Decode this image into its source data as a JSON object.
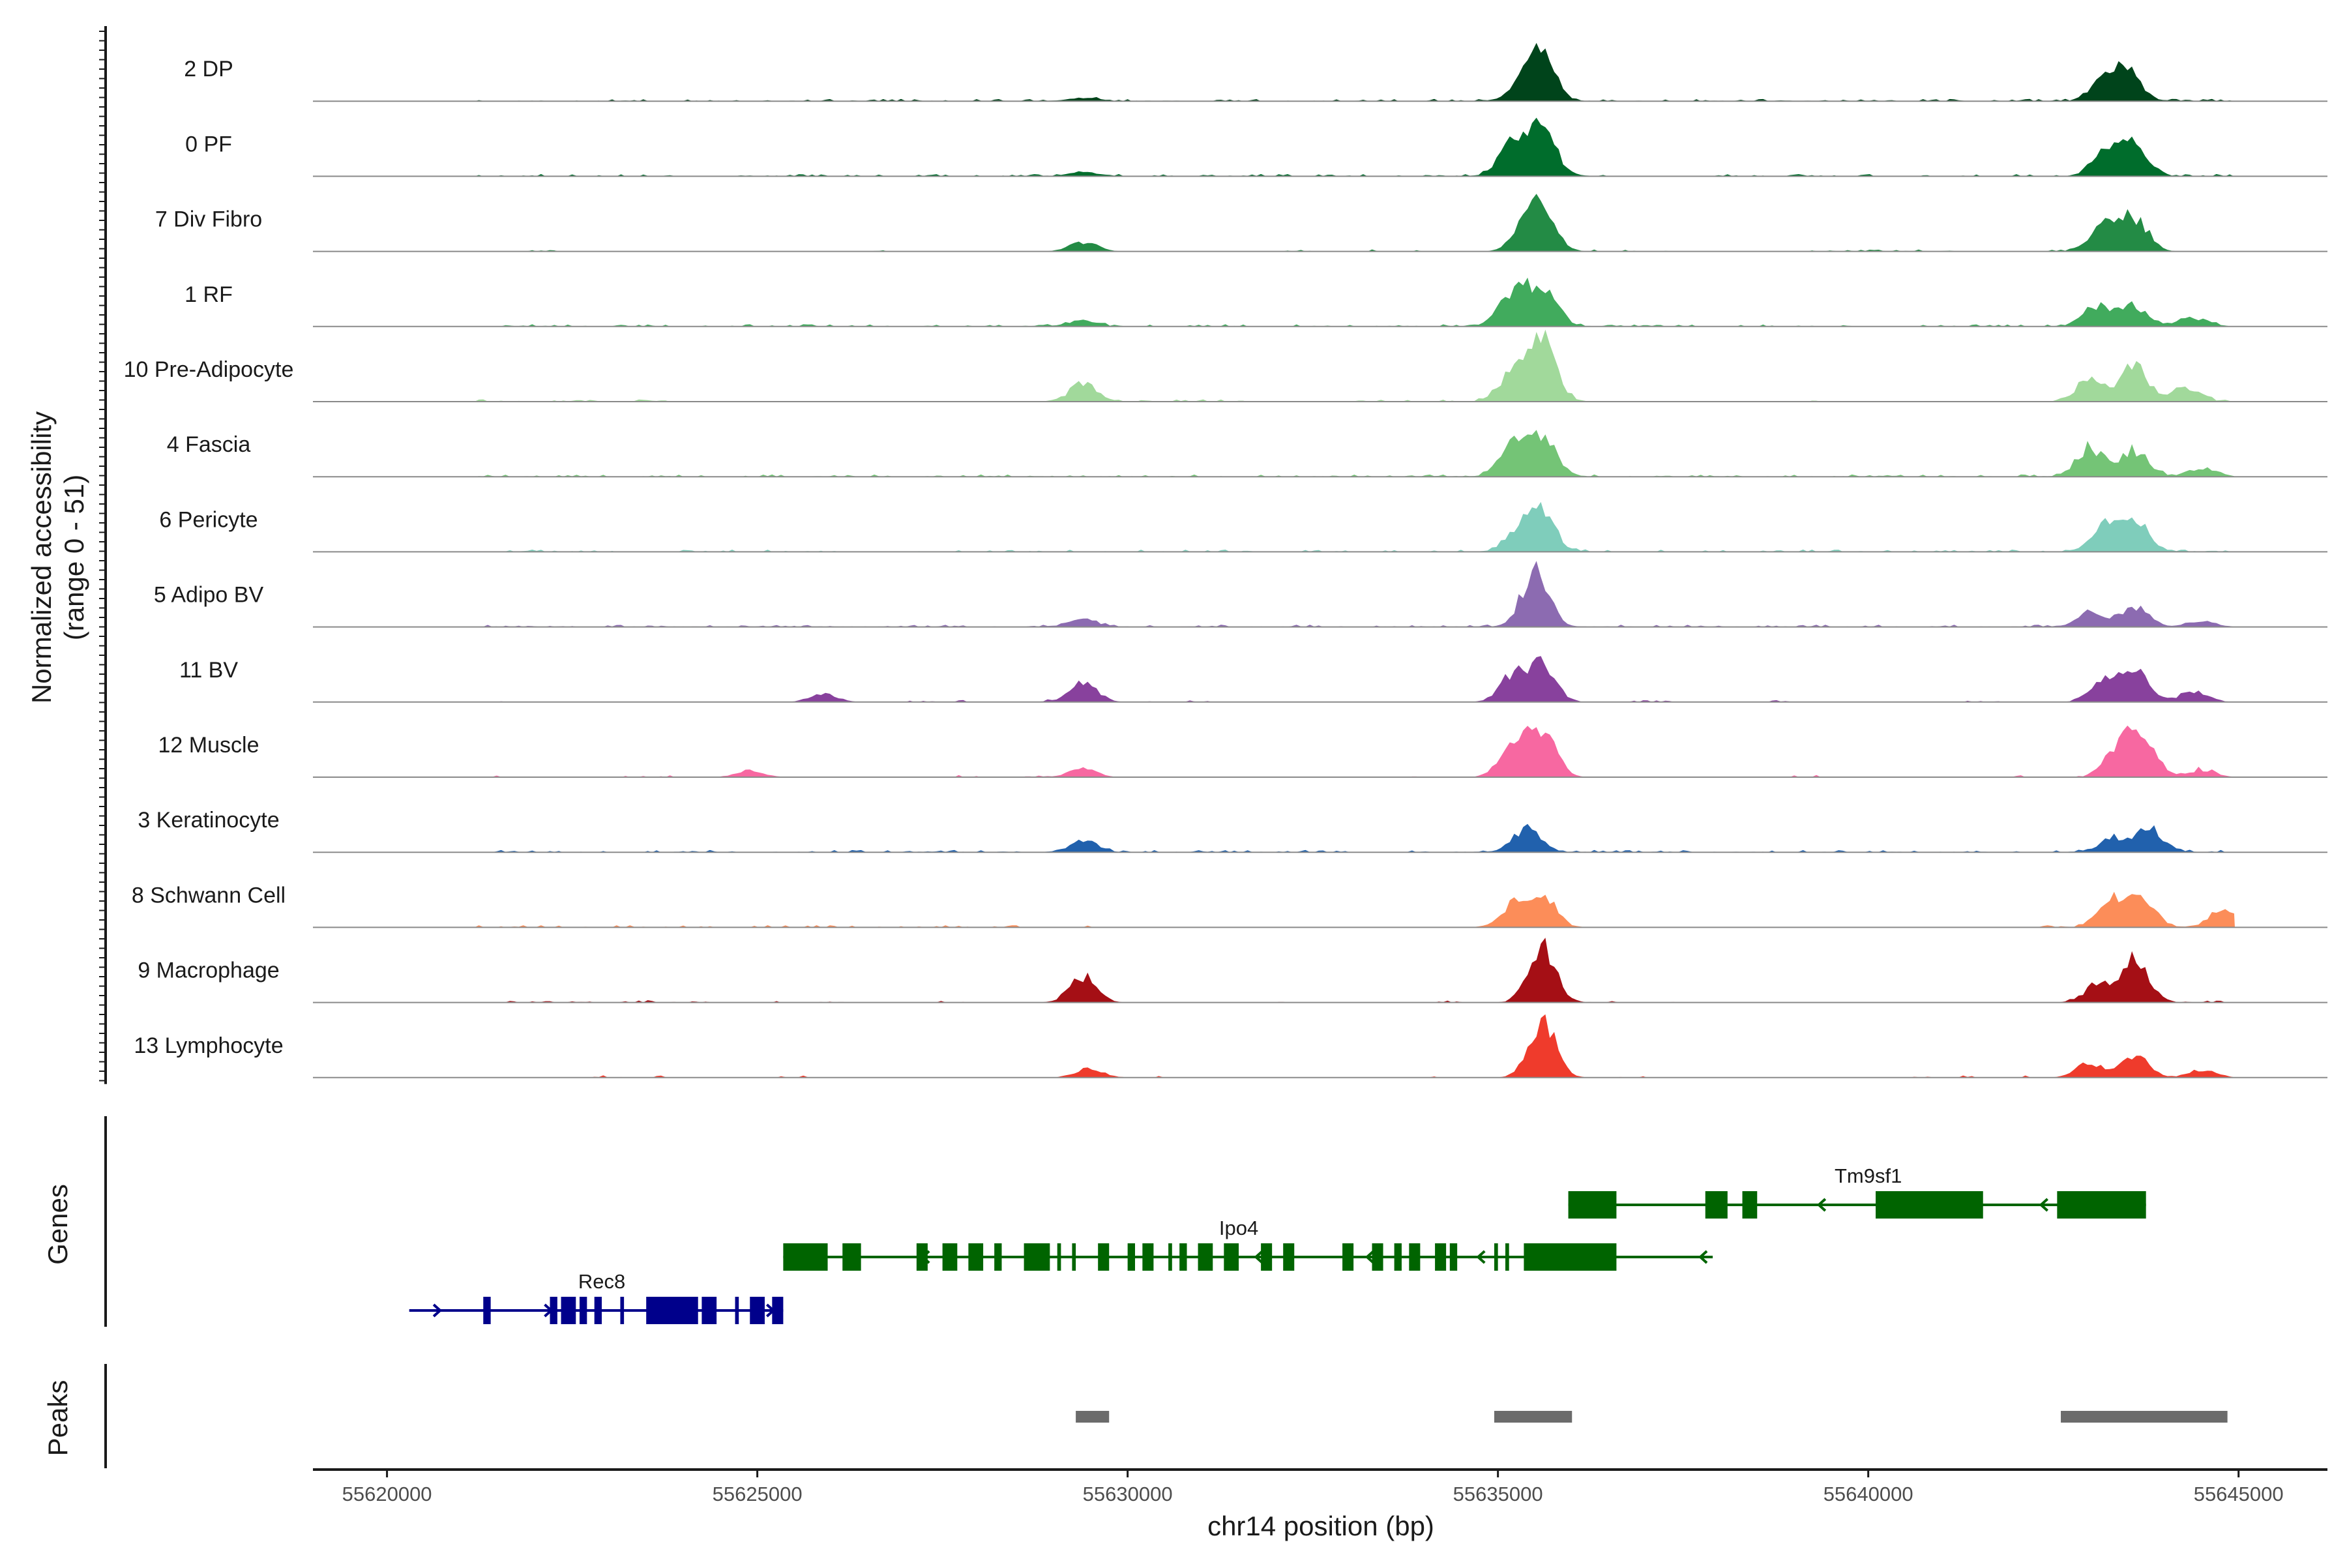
{
  "chart_data": {
    "type": "area",
    "subtype": "genome-coverage-track",
    "accessibility_axis_title": [
      "Normalized accessibility",
      "(range 0 - 51)"
    ],
    "y_range": [
      0,
      51
    ],
    "xlabel": "chr14 position (bp)",
    "xlim": [
      55619000,
      55646200
    ],
    "x_ticks": [
      55620000,
      55625000,
      55630000,
      55635000,
      55640000,
      55645000
    ],
    "x_tick_labels": [
      "55620000",
      "55625000",
      "55630000",
      "55635000",
      "55640000",
      "55645000"
    ],
    "grid": false,
    "legend": "none",
    "tracks": [
      {
        "name": "2 DP",
        "color": "#00441b",
        "peaks": [
          [
            55629400,
            2.5
          ],
          [
            55635400,
            18
          ],
          [
            55635600,
            25
          ],
          [
            55643200,
            14
          ],
          [
            55643500,
            18
          ]
        ],
        "noise": [
          [
            55621200,
            55644900
          ]
        ]
      },
      {
        "name": "0 PF",
        "color": "#006d2c",
        "peaks": [
          [
            55629400,
            3
          ],
          [
            55635200,
            22
          ],
          [
            55635600,
            35
          ],
          [
            55643200,
            16
          ],
          [
            55643600,
            22
          ]
        ],
        "noise": [
          [
            55621200,
            55644900
          ]
        ]
      },
      {
        "name": "7 Div Fibro",
        "color": "#238b45",
        "peaks": [
          [
            55629400,
            6
          ],
          [
            55635400,
            20
          ],
          [
            55635600,
            26
          ],
          [
            55643200,
            18
          ],
          [
            55643600,
            22
          ]
        ],
        "noise": [
          [
            55621900,
            55622300
          ],
          [
            55626500,
            55626700
          ],
          [
            55629100,
            55629700
          ],
          [
            55632100,
            55632500
          ],
          [
            55633200,
            55634000
          ],
          [
            55636200,
            55637600
          ],
          [
            55639200,
            55641300
          ],
          [
            55642300,
            55644000
          ]
        ]
      },
      {
        "name": "1 RF",
        "color": "#41ab5d",
        "peaks": [
          [
            55629400,
            4
          ],
          [
            55635200,
            22
          ],
          [
            55635600,
            30
          ],
          [
            55643100,
            15
          ],
          [
            55643600,
            14
          ],
          [
            55644400,
            6
          ]
        ],
        "noise": [
          [
            55621200,
            55644900
          ]
        ]
      },
      {
        "name": "10 Pre-Adipocyte",
        "color": "#a1d99b",
        "peaks": [
          [
            55629400,
            12
          ],
          [
            55635200,
            20
          ],
          [
            55635600,
            42
          ],
          [
            55643000,
            15
          ],
          [
            55643600,
            25
          ],
          [
            55644300,
            10
          ]
        ],
        "noise": [
          [
            55621200,
            55624000
          ],
          [
            55628800,
            55631600
          ],
          [
            55633000,
            55636200
          ],
          [
            55639200,
            55639600
          ],
          [
            55642500,
            55644900
          ]
        ]
      },
      {
        "name": "4 Fascia",
        "color": "#74c476",
        "peaks": [
          [
            55635200,
            20
          ],
          [
            55635600,
            30
          ],
          [
            55643000,
            20
          ],
          [
            55643600,
            18
          ],
          [
            55644500,
            6
          ]
        ],
        "noise": [
          [
            55621200,
            55644900
          ]
        ]
      },
      {
        "name": "6 Pericyte",
        "color": "#7fcdbb",
        "peaks": [
          [
            55635300,
            16
          ],
          [
            55635600,
            24
          ],
          [
            55643200,
            18
          ],
          [
            55643600,
            22
          ]
        ],
        "noise": [
          [
            55621200,
            55644900
          ]
        ]
      },
      {
        "name": "5 Adipo BV",
        "color": "#8c6bb1",
        "peaks": [
          [
            55629400,
            5
          ],
          [
            55635500,
            38
          ],
          [
            55643000,
            10
          ],
          [
            55643600,
            14
          ],
          [
            55644500,
            4
          ]
        ],
        "noise": [
          [
            55621200,
            55644900
          ]
        ]
      },
      {
        "name": "11 BV",
        "color": "#88419d",
        "peaks": [
          [
            55625900,
            6
          ],
          [
            55629400,
            14
          ],
          [
            55635200,
            18
          ],
          [
            55635600,
            25
          ],
          [
            55643200,
            14
          ],
          [
            55643600,
            22
          ],
          [
            55644400,
            8
          ]
        ],
        "noise": [
          [
            55621200,
            55621800
          ],
          [
            55626500,
            55627800
          ],
          [
            55628700,
            55629000
          ],
          [
            55630200,
            55631200
          ],
          [
            55636500,
            55637400
          ],
          [
            55638700,
            55639500
          ],
          [
            55641300,
            55641800
          ],
          [
            55642700,
            55644800
          ]
        ]
      },
      {
        "name": "12 Muscle",
        "color": "#f768a1",
        "peaks": [
          [
            55624900,
            5
          ],
          [
            55629400,
            6
          ],
          [
            55635200,
            22
          ],
          [
            55635600,
            32
          ],
          [
            55643400,
            22
          ],
          [
            55643700,
            26
          ],
          [
            55644500,
            5
          ]
        ],
        "noise": [
          [
            55621200,
            55622000
          ],
          [
            55623200,
            55624200
          ],
          [
            55627600,
            55628100
          ],
          [
            55628600,
            55629000
          ],
          [
            55633800,
            55634200
          ],
          [
            55638800,
            55639300
          ],
          [
            55641800,
            55642300
          ],
          [
            55642700,
            55644900
          ]
        ]
      },
      {
        "name": "3 Keratinocyte",
        "color": "#2161ad",
        "peaks": [
          [
            55629400,
            8
          ],
          [
            55635400,
            18
          ],
          [
            55643300,
            10
          ],
          [
            55643800,
            16
          ]
        ],
        "noise": [
          [
            55621200,
            55644900
          ]
        ]
      },
      {
        "name": "8 Schwann Cell",
        "color": "#fc8d59",
        "peaks": [
          [
            55635200,
            15
          ],
          [
            55635600,
            22
          ],
          [
            55643300,
            18
          ],
          [
            55643700,
            20
          ],
          [
            55644800,
            14
          ]
        ],
        "noise": [
          [
            55621200,
            55628500
          ],
          [
            55629000,
            55629600
          ],
          [
            55642300,
            55644900
          ]
        ]
      },
      {
        "name": "9 Macrophage",
        "color": "#a50f15",
        "peaks": [
          [
            55629400,
            18
          ],
          [
            55635600,
            40
          ],
          [
            55643100,
            12
          ],
          [
            55643600,
            30
          ]
        ],
        "noise": [
          [
            55620200,
            55621000
          ],
          [
            55621600,
            55622800
          ],
          [
            55623100,
            55624400
          ],
          [
            55625000,
            55625300
          ],
          [
            55625800,
            55626400
          ],
          [
            55627400,
            55627800
          ],
          [
            55632000,
            55632200
          ],
          [
            55634200,
            55634500
          ],
          [
            55636200,
            55636600
          ],
          [
            55637200,
            55637500
          ],
          [
            55642600,
            55644900
          ]
        ]
      },
      {
        "name": "13 Lymphocyte",
        "color": "#ef3b2c",
        "peaks": [
          [
            55629500,
            6
          ],
          [
            55635600,
            40
          ],
          [
            55643000,
            10
          ],
          [
            55643600,
            14
          ],
          [
            55644500,
            5
          ]
        ],
        "noise": [
          [
            55622800,
            55623200
          ],
          [
            55623600,
            55623800
          ],
          [
            55625300,
            55625800
          ],
          [
            55629100,
            55629700
          ],
          [
            55630400,
            55630600
          ],
          [
            55633800,
            55634200
          ],
          [
            55635300,
            55636000
          ],
          [
            55636600,
            55637000
          ],
          [
            55640600,
            55641400
          ],
          [
            55642100,
            55642300
          ],
          [
            55642700,
            55644900
          ]
        ]
      }
    ],
    "gene_axis_title": "Genes",
    "genes": [
      {
        "name": "Tm9sf1",
        "color": "#006400",
        "strand": "-",
        "start": 55635950,
        "end": 55643750,
        "row": 0,
        "exons": [
          [
            55635950,
            55636600
          ],
          [
            55637800,
            55638100
          ],
          [
            55638300,
            55638500
          ],
          [
            55640100,
            55641550
          ],
          [
            55642550,
            55643750
          ]
        ]
      },
      {
        "name": "Ipo4",
        "color": "#006400",
        "strand": "-",
        "start": 55625350,
        "end": 55637900,
        "row": 1,
        "exons": [
          [
            55625350,
            55625950
          ],
          [
            55626150,
            55626400
          ],
          [
            55627150,
            55627300
          ],
          [
            55627500,
            55627700
          ],
          [
            55627850,
            55628050
          ],
          [
            55628200,
            55628300
          ],
          [
            55628600,
            55628950
          ],
          [
            55629050,
            55629100
          ],
          [
            55629250,
            55629300
          ],
          [
            55629600,
            55629750
          ],
          [
            55630000,
            55630100
          ],
          [
            55630200,
            55630350
          ],
          [
            55630550,
            55630600
          ],
          [
            55630700,
            55630800
          ],
          [
            55630950,
            55631150
          ],
          [
            55631300,
            55631500
          ],
          [
            55631800,
            55631950
          ],
          [
            55632100,
            55632250
          ],
          [
            55632900,
            55633050
          ],
          [
            55633300,
            55633450
          ],
          [
            55633600,
            55633700
          ],
          [
            55633800,
            55633950
          ],
          [
            55634150,
            55634300
          ],
          [
            55634350,
            55634450
          ],
          [
            55634950,
            55635000
          ],
          [
            55635100,
            55635150
          ],
          [
            55635350,
            55636600
          ]
        ]
      },
      {
        "name": "Rec8",
        "color": "#00008b",
        "strand": "+",
        "start": 55620300,
        "end": 55625350,
        "row": 2,
        "exons": [
          [
            55621300,
            55621400
          ],
          [
            55622200,
            55622300
          ],
          [
            55622350,
            55622550
          ],
          [
            55622600,
            55622700
          ],
          [
            55622800,
            55622900
          ],
          [
            55623150,
            55623200
          ],
          [
            55623500,
            55624200
          ],
          [
            55624250,
            55624450
          ],
          [
            55624700,
            55624750
          ],
          [
            55624900,
            55625100
          ],
          [
            55625200,
            55625350
          ]
        ]
      }
    ],
    "peak_axis_title": "Peaks",
    "peaks": [
      [
        55629300,
        55629750
      ],
      [
        55634950,
        55636000
      ],
      [
        55642600,
        55644850
      ]
    ],
    "peak_color": "#6b6b6b"
  }
}
